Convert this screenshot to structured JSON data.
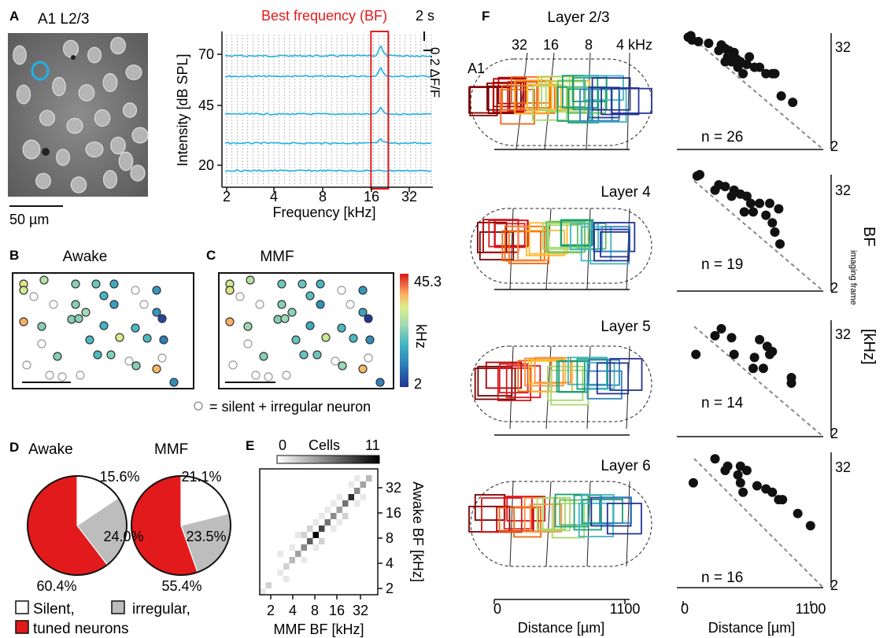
{
  "panel_letters": [
    "A",
    "B",
    "C",
    "D",
    "E",
    "F"
  ],
  "panel_a": {
    "title": "A1 L2/3",
    "scale_label": "50 µm",
    "chart_data": {
      "type": "line",
      "title": "Best frequency (BF)",
      "xlabel": "Frequency [kHz]",
      "ylabel": "Intensity [dB SPL]",
      "xticks": [
        "2",
        "4",
        "8",
        "16",
        "32"
      ],
      "yticks": [
        "70",
        "45",
        "20"
      ],
      "time_scale": "2 s",
      "amp_scale": "0.2 ΔF/F",
      "n_tones": 40,
      "bf_tone_index": 29,
      "colors": {
        "trace": "#22b0e6",
        "bf": "#e31a1c"
      }
    }
  },
  "panel_b": {
    "title": "Awake"
  },
  "panel_c": {
    "title": "MMF"
  },
  "colorbar": {
    "max": "45.3",
    "min": "2",
    "unit": "kHz"
  },
  "silent_legend": "= silent + irregular neuron",
  "panel_d": {
    "chart_data": [
      {
        "type": "pie",
        "title": "Awake",
        "slices": [
          {
            "name": "Silent",
            "value": 15.6,
            "label": "15.6%",
            "color": "#ffffff"
          },
          {
            "name": "irregular",
            "value": 24.0,
            "label": "24.0%",
            "color": "#bdbdbd"
          },
          {
            "name": "tuned neurons",
            "value": 60.4,
            "label": "60.4%",
            "color": "#e31a1c"
          }
        ]
      },
      {
        "type": "pie",
        "title": "MMF",
        "slices": [
          {
            "name": "Silent",
            "value": 21.1,
            "label": "21.1%",
            "color": "#ffffff"
          },
          {
            "name": "irregular",
            "value": 23.5,
            "label": "23.5%",
            "color": "#bdbdbd"
          },
          {
            "name": "tuned neurons",
            "value": 55.4,
            "label": "55.4%",
            "color": "#e31a1c"
          }
        ]
      }
    ],
    "legend": {
      "silent": "Silent,",
      "irregular": "irregular,",
      "tuned": "tuned neurons"
    }
  },
  "panel_e": {
    "chart_data": {
      "type": "heatmap",
      "xlabel": "MMF BF [kHz]",
      "ylabel": "Awake BF [kHz]",
      "xticks": [
        "2",
        "4",
        "8",
        "16",
        "32"
      ],
      "yticks": [
        "32",
        "16",
        "8",
        "4",
        "2"
      ],
      "colorbar_min": "0",
      "colorbar_max": "11",
      "colorbar_label": "Cells",
      "grid_size": 20,
      "diagonal": [
        [
          1,
          1,
          2
        ],
        [
          3,
          3,
          1
        ],
        [
          4,
          4,
          2
        ],
        [
          5,
          5,
          3
        ],
        [
          6,
          6,
          4
        ],
        [
          7,
          7,
          5
        ],
        [
          8,
          8,
          7
        ],
        [
          9,
          9,
          11
        ],
        [
          10,
          10,
          8
        ],
        [
          11,
          11,
          6
        ],
        [
          12,
          12,
          5
        ],
        [
          13,
          13,
          4
        ],
        [
          14,
          14,
          6
        ],
        [
          15,
          15,
          9
        ],
        [
          16,
          16,
          5
        ],
        [
          17,
          17,
          4
        ],
        [
          18,
          18,
          3
        ]
      ],
      "offdiag": [
        [
          5,
          7,
          1
        ],
        [
          7,
          5,
          1
        ],
        [
          8,
          10,
          2
        ],
        [
          10,
          8,
          2
        ],
        [
          9,
          7,
          1
        ],
        [
          11,
          13,
          1
        ],
        [
          13,
          11,
          1
        ],
        [
          12,
          10,
          1
        ],
        [
          6,
          9,
          1
        ],
        [
          14,
          12,
          2
        ],
        [
          15,
          17,
          1
        ],
        [
          16,
          14,
          1
        ],
        [
          3,
          6,
          1
        ],
        [
          17,
          15,
          1
        ],
        [
          10,
          12,
          1
        ],
        [
          9,
          11,
          1
        ],
        [
          7,
          9,
          2
        ],
        [
          12,
          14,
          1
        ],
        [
          16,
          18,
          1
        ],
        [
          4,
          2,
          1
        ],
        [
          0,
          0,
          1
        ],
        [
          13,
          15,
          1
        ]
      ]
    }
  },
  "panel_f": {
    "freq_ticks": [
      "32",
      "16",
      "8",
      "4 kHz"
    ],
    "area_label": "A1",
    "xlabel": "Distance [µm]",
    "xticks": [
      "0",
      "1100"
    ],
    "right_yticks": [
      "32",
      "2"
    ],
    "right_ylabel": "BF",
    "right_ylabel_sub": "imaging frame",
    "right_ylabel_unit": "[kHz]",
    "layers": [
      {
        "name": "Layer 2/3",
        "n": "n = 26",
        "points": [
          [
            60,
            30
          ],
          [
            40,
            29
          ],
          [
            120,
            26
          ],
          [
            70,
            27
          ],
          [
            200,
            25
          ],
          [
            300,
            24
          ],
          [
            330,
            22
          ],
          [
            280,
            21
          ],
          [
            360,
            21
          ],
          [
            400,
            20
          ],
          [
            350,
            18
          ],
          [
            420,
            17
          ],
          [
            380,
            16
          ],
          [
            450,
            16
          ],
          [
            500,
            15
          ],
          [
            560,
            14
          ],
          [
            600,
            14
          ],
          [
            650,
            12
          ],
          [
            700,
            12
          ],
          [
            720,
            12
          ],
          [
            430,
            14
          ],
          [
            330,
            16
          ],
          [
            470,
            12
          ],
          [
            770,
            7
          ],
          [
            860,
            6
          ],
          [
            520,
            18
          ]
        ]
      },
      {
        "name": "Layer 4",
        "n": "n = 19",
        "points": [
          [
            130,
            32
          ],
          [
            110,
            31
          ],
          [
            280,
            25
          ],
          [
            330,
            24
          ],
          [
            250,
            22
          ],
          [
            400,
            22
          ],
          [
            450,
            20
          ],
          [
            380,
            19
          ],
          [
            500,
            19
          ],
          [
            530,
            16
          ],
          [
            600,
            16
          ],
          [
            680,
            16
          ],
          [
            750,
            14
          ],
          [
            550,
            13
          ],
          [
            650,
            12
          ],
          [
            700,
            10
          ],
          [
            720,
            8
          ],
          [
            760,
            6
          ],
          [
            480,
            13
          ]
        ]
      },
      {
        "name": "Layer 5",
        "n": "n = 14",
        "points": [
          [
            300,
            26
          ],
          [
            250,
            22
          ],
          [
            380,
            21
          ],
          [
            600,
            20
          ],
          [
            660,
            17
          ],
          [
            700,
            15
          ],
          [
            400,
            14
          ],
          [
            680,
            14
          ],
          [
            560,
            13
          ],
          [
            550,
            10
          ],
          [
            630,
            10
          ],
          [
            850,
            8
          ],
          [
            850,
            7
          ],
          [
            100,
            14
          ]
        ]
      },
      {
        "name": "Layer 6",
        "n": "n = 16",
        "points": [
          [
            250,
            28
          ],
          [
            350,
            24
          ],
          [
            450,
            24
          ],
          [
            330,
            22
          ],
          [
            500,
            22
          ],
          [
            430,
            20
          ],
          [
            450,
            17
          ],
          [
            580,
            16
          ],
          [
            650,
            15
          ],
          [
            470,
            14
          ],
          [
            700,
            14
          ],
          [
            750,
            12
          ],
          [
            780,
            12
          ],
          [
            900,
            9
          ],
          [
            1000,
            7
          ],
          [
            80,
            17
          ]
        ]
      }
    ],
    "colors": {
      "tuning": [
        "#7a0000",
        "#b30000",
        "#d7191c",
        "#f16913",
        "#fd8d3c",
        "#fdbb2d",
        "#a6d96a",
        "#66bd63",
        "#1b9e77",
        "#41b6c4",
        "#3182bd",
        "#253494"
      ]
    }
  }
}
